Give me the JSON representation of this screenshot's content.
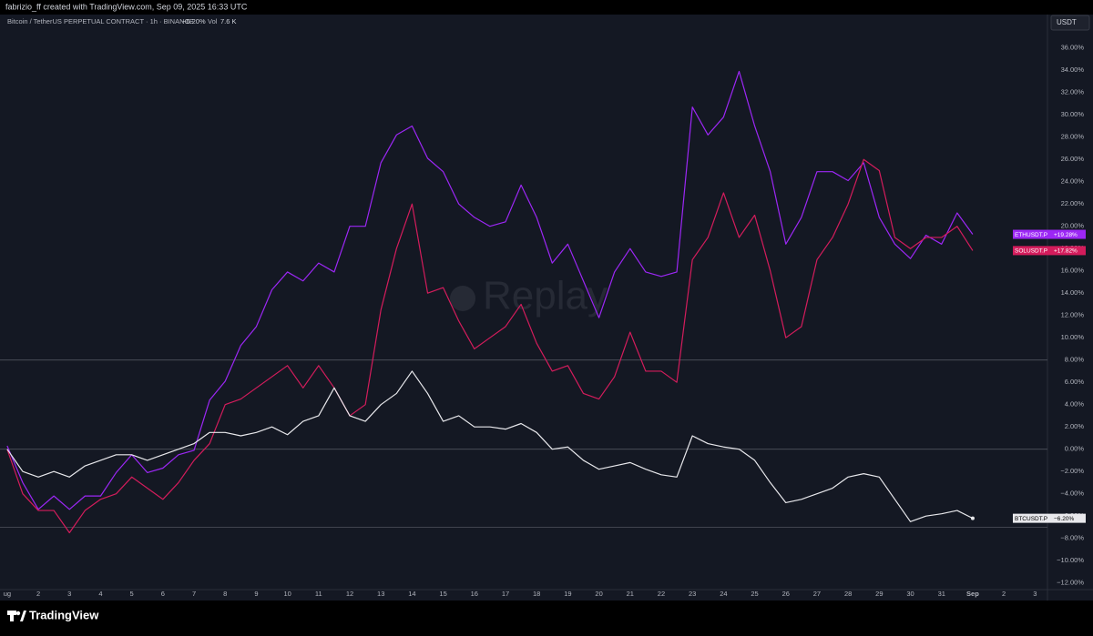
{
  "header": {
    "credit": "fabrizio_ff created with TradingView.com, Sep 09, 2025 16:33 UTC"
  },
  "legend": {
    "symbol": "Bitcoin / TetherUS PERPETUAL CONTRACT · 1h · BINANCE",
    "change": "−6.20%",
    "vol_label": "Vol",
    "vol_value": "7.6 K"
  },
  "axis_currency": "USDT",
  "watermark": "Replay",
  "footer": {
    "brand": "TradingView"
  },
  "chart_data": {
    "type": "line",
    "x": [
      1,
      1.5,
      2,
      2.5,
      3,
      3.5,
      4,
      4.5,
      5,
      5.5,
      6,
      6.5,
      7,
      7.5,
      8,
      8.5,
      9,
      9.5,
      10,
      10.5,
      11,
      11.5,
      12,
      12.5,
      13,
      13.5,
      14,
      14.5,
      15,
      15.5,
      16,
      16.5,
      17,
      17.5,
      18,
      18.5,
      19,
      19.5,
      20,
      20.5,
      21,
      21.5,
      22,
      22.5,
      23,
      23.5,
      24,
      24.5,
      25,
      25.5,
      26,
      26.5,
      27,
      27.5,
      28,
      28.5,
      29,
      29.5,
      30,
      30.5,
      31,
      31.5,
      32
    ],
    "xlim": [
      0.77,
      34.4
    ],
    "xticks": [
      {
        "value": 1,
        "label": "ug"
      },
      2,
      3,
      4,
      5,
      6,
      7,
      8,
      9,
      10,
      11,
      12,
      13,
      14,
      15,
      16,
      17,
      18,
      19,
      20,
      21,
      22,
      23,
      24,
      25,
      26,
      27,
      28,
      29,
      30,
      31,
      {
        "value": 32,
        "label": "Sep"
      },
      {
        "value": 33,
        "label": "2"
      },
      {
        "value": 34,
        "label": "3"
      }
    ],
    "ylim": [
      -12.6,
      39.0
    ],
    "yticks": [
      {
        "value": 36,
        "label": "36.00%"
      },
      {
        "value": 34,
        "label": "34.00%"
      },
      {
        "value": 32,
        "label": "32.00%"
      },
      {
        "value": 30,
        "label": "30.00%"
      },
      {
        "value": 28,
        "label": "28.00%"
      },
      {
        "value": 26,
        "label": "26.00%"
      },
      {
        "value": 24,
        "label": "24.00%"
      },
      {
        "value": 22,
        "label": "22.00%"
      },
      {
        "value": 20,
        "label": "20.00%"
      },
      {
        "value": 18,
        "label": "18.00%"
      },
      {
        "value": 16,
        "label": "16.00%"
      },
      {
        "value": 14,
        "label": "14.00%"
      },
      {
        "value": 12,
        "label": "12.00%"
      },
      {
        "value": 10,
        "label": "10.00%"
      },
      {
        "value": 8,
        "label": "8.00%"
      },
      {
        "value": 6,
        "label": "6.00%"
      },
      {
        "value": 4,
        "label": "4.00%"
      },
      {
        "value": 2,
        "label": "2.00%"
      },
      {
        "value": 0,
        "label": "0.00%"
      },
      {
        "value": -2,
        "label": "−2.00%"
      },
      {
        "value": -4,
        "label": "−4.00%"
      },
      {
        "value": -6,
        "label": "−6.00%"
      },
      {
        "value": -8,
        "label": "−8.00%"
      },
      {
        "value": -10,
        "label": "−10.00%"
      },
      {
        "value": -12,
        "label": "−12.00%"
      }
    ],
    "grid": false,
    "hlines": [
      8,
      0,
      -7
    ],
    "series": [
      {
        "name": "ETHUSDT.P",
        "color": "#9c27f5",
        "values": [
          0.3,
          -3,
          -5.4,
          -4.2,
          -5.4,
          -4.2,
          -4.2,
          -2.1,
          -0.5,
          -2.1,
          -1.7,
          -0.5,
          -0.1,
          4.4,
          6.1,
          9.3,
          11.0,
          14.3,
          15.9,
          15.1,
          16.7,
          15.9,
          20.0,
          20.0,
          25.7,
          28.2,
          29.0,
          26.1,
          24.9,
          22.0,
          20.8,
          20.0,
          20.4,
          23.7,
          20.8,
          16.7,
          18.4,
          15.1,
          11.8,
          15.9,
          18.0,
          15.9,
          15.5,
          15.9,
          30.7,
          28.2,
          29.8,
          33.9,
          29.0,
          24.9,
          18.4,
          20.8,
          24.9,
          24.9,
          24.1,
          25.7,
          20.8,
          18.4,
          17.1,
          19.2,
          18.4,
          21.2,
          19.28
        ],
        "value_labels": [
          null,
          null,
          null,
          null,
          null,
          null,
          null,
          null,
          null,
          null,
          null,
          null,
          null,
          null,
          null,
          null,
          null,
          null,
          null,
          null,
          null,
          null,
          null,
          null,
          null,
          null,
          null,
          null,
          null,
          null,
          null,
          null,
          null,
          null,
          null,
          null,
          null,
          null,
          null,
          null,
          null,
          null,
          null,
          null,
          null,
          null,
          null,
          null,
          null,
          null,
          null,
          null,
          null,
          null,
          null,
          null,
          null,
          null,
          null,
          null,
          null,
          null,
          "+19.28%"
        ]
      },
      {
        "name": "SOLUSDT.P",
        "color": "#d41c5c",
        "values": [
          0,
          -4,
          -5.5,
          -5.5,
          -7.5,
          -5.5,
          -4.5,
          -4,
          -2.5,
          -3.5,
          -4.5,
          -3,
          -1,
          0.5,
          4,
          4.5,
          5.5,
          6.5,
          7.5,
          5.5,
          7.5,
          5.5,
          3.0,
          4.0,
          12.5,
          18,
          22,
          14,
          14.5,
          11.5,
          9,
          10,
          11,
          13,
          9.5,
          7,
          7.5,
          5,
          4.5,
          6.5,
          10.5,
          7,
          7,
          6,
          17,
          19,
          23,
          19,
          21,
          16,
          10,
          11,
          17,
          19,
          22,
          26,
          25,
          19,
          18,
          19,
          19,
          20,
          17.82
        ],
        "value_labels": [
          null,
          null,
          null,
          null,
          null,
          null,
          null,
          null,
          null,
          null,
          null,
          null,
          null,
          null,
          null,
          null,
          null,
          null,
          null,
          null,
          null,
          null,
          null,
          null,
          null,
          null,
          null,
          null,
          null,
          null,
          null,
          null,
          null,
          null,
          null,
          null,
          null,
          null,
          null,
          null,
          null,
          null,
          null,
          null,
          null,
          null,
          null,
          null,
          null,
          null,
          null,
          null,
          null,
          null,
          null,
          null,
          null,
          null,
          null,
          null,
          null,
          null,
          "+17.82%"
        ]
      },
      {
        "name": "BTCUSDT.P",
        "color": "#e8e8ec",
        "values": [
          0,
          -2,
          -2.5,
          -2,
          -2.5,
          -1.5,
          -1,
          -0.5,
          -0.5,
          -1,
          -0.5,
          0,
          0.5,
          1.5,
          1.5,
          1.2,
          1.5,
          2,
          1.3,
          2.5,
          3,
          5.5,
          3,
          2.5,
          4,
          5,
          7,
          5,
          2.5,
          3,
          2,
          2,
          1.8,
          2.3,
          1.5,
          0,
          0.2,
          -1,
          -1.8,
          -1.5,
          -1.2,
          -1.8,
          -2.3,
          -2.5,
          1.2,
          0.5,
          0.2,
          0,
          -1,
          -3,
          -4.8,
          -4.5,
          -4,
          -3.5,
          -2.5,
          -2.2,
          -2.5,
          -4.5,
          -6.5,
          -6,
          -5.8,
          -5.5,
          -6.2
        ],
        "value_labels": [
          null,
          null,
          null,
          null,
          null,
          null,
          null,
          null,
          null,
          null,
          null,
          null,
          null,
          null,
          null,
          null,
          null,
          null,
          null,
          null,
          null,
          null,
          null,
          null,
          null,
          null,
          null,
          null,
          null,
          null,
          null,
          null,
          null,
          null,
          null,
          null,
          null,
          null,
          null,
          null,
          null,
          null,
          null,
          null,
          null,
          null,
          null,
          null,
          null,
          null,
          null,
          null,
          null,
          null,
          null,
          null,
          null,
          null,
          null,
          null,
          null,
          null,
          "−6.20%"
        ]
      }
    ]
  }
}
